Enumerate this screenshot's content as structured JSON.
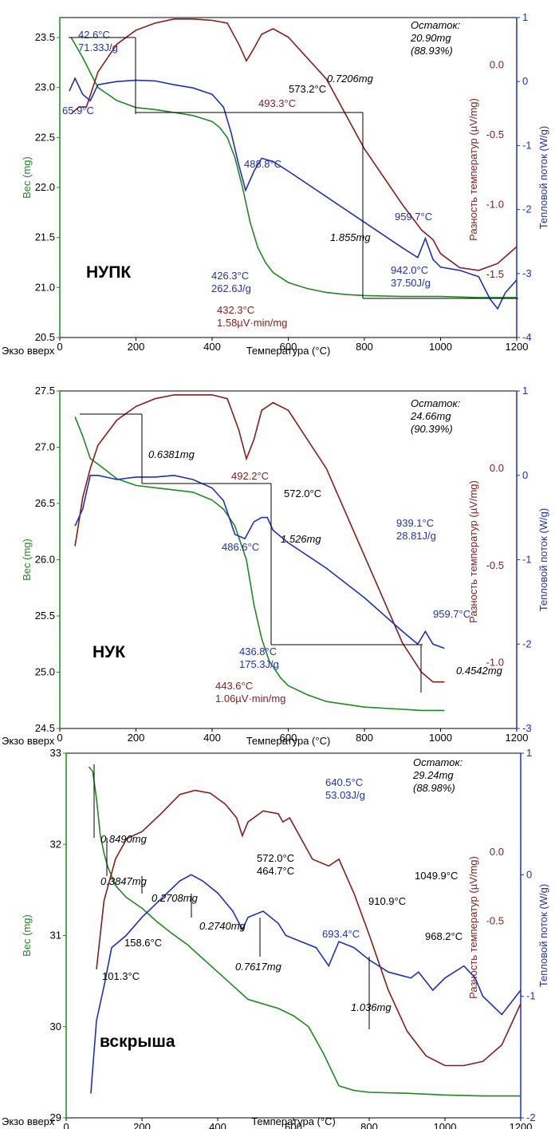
{
  "figure": {
    "x_axis_label": "Температура (°C)",
    "x_note": "Экзо вверх",
    "left_axis_label": "Вес (mg)",
    "mid_axis_label": "Разность температур (µV/mg)",
    "right_axis_label": "Тепловой поток (W/g)"
  },
  "colors": {
    "weight": "#1e8a1e",
    "dta": "#8b1a1a",
    "heat": "#1f2fc0",
    "marker": "#e03030",
    "black": "#000000"
  },
  "chart_data": [
    {
      "type": "line",
      "title": "НУПК",
      "xlim": [
        0,
        1200
      ],
      "x_ticks": [
        0,
        200,
        400,
        600,
        800,
        1000,
        1200
      ],
      "weight_axis": {
        "ylim": [
          20.5,
          23.7
        ],
        "ticks": [
          20.5,
          21.0,
          21.5,
          22.0,
          22.5,
          23.0,
          23.5
        ],
        "tick_labels": [
          "20.5",
          "21.0",
          "21.5",
          "22.0",
          "22.5",
          "23.0",
          "23.5"
        ]
      },
      "dta_axis": {
        "ylim": [
          -1.95,
          0.34
        ],
        "ticks": [
          -1.5,
          -1.0,
          -0.5,
          0.0
        ],
        "tick_labels": [
          "-1.5",
          "-1.0",
          "-0.5",
          "0.0"
        ]
      },
      "heat_axis": {
        "ylim": [
          -4,
          1
        ],
        "ticks": [
          -4,
          -3,
          -2,
          -1,
          0,
          1
        ],
        "tick_labels": [
          "-4",
          "-3",
          "-2",
          "-1",
          "0",
          "1"
        ]
      },
      "series": [
        {
          "name": "weight",
          "axis": "weight",
          "x": [
            30,
            60,
            100,
            150,
            200,
            250,
            300,
            350,
            400,
            420,
            440,
            460,
            480,
            500,
            520,
            540,
            560,
            600,
            650,
            700,
            750,
            800,
            900,
            1000,
            1100,
            1200
          ],
          "y": [
            23.5,
            23.3,
            23.0,
            22.87,
            22.8,
            22.78,
            22.75,
            22.72,
            22.66,
            22.6,
            22.5,
            22.3,
            22.0,
            21.65,
            21.4,
            21.25,
            21.15,
            21.05,
            20.99,
            20.95,
            20.93,
            20.92,
            20.91,
            20.91,
            20.9,
            20.9
          ]
        },
        {
          "name": "dta",
          "axis": "dta",
          "x": [
            30,
            50,
            70,
            100,
            150,
            200,
            250,
            300,
            350,
            400,
            440,
            470,
            490,
            510,
            530,
            560,
            600,
            700,
            800,
            900,
            950,
            980,
            1000,
            1050,
            1100,
            1150,
            1200
          ],
          "y": [
            -0.35,
            -0.3,
            -0.3,
            -0.05,
            0.15,
            0.25,
            0.3,
            0.33,
            0.33,
            0.32,
            0.3,
            0.15,
            0.03,
            0.12,
            0.22,
            0.26,
            0.2,
            -0.1,
            -0.6,
            -1.0,
            -1.18,
            -1.25,
            -1.35,
            -1.45,
            -1.47,
            -1.42,
            -1.3
          ]
        },
        {
          "name": "heat",
          "axis": "heat",
          "x": [
            25,
            40,
            60,
            80,
            100,
            150,
            200,
            250,
            300,
            350,
            400,
            430,
            450,
            470,
            488,
            510,
            530,
            560,
            600,
            700,
            800,
            900,
            940,
            960,
            980,
            1000,
            1050,
            1100,
            1130,
            1150,
            1170,
            1200
          ],
          "y": [
            -0.15,
            0.05,
            -0.2,
            -0.3,
            -0.05,
            0.0,
            0.02,
            0.01,
            -0.05,
            -0.1,
            -0.2,
            -0.4,
            -0.8,
            -1.3,
            -1.7,
            -1.4,
            -1.2,
            -1.25,
            -1.4,
            -1.8,
            -2.2,
            -2.6,
            -2.75,
            -2.45,
            -2.78,
            -2.9,
            -2.95,
            -3.05,
            -3.4,
            -3.55,
            -3.3,
            -3.1
          ]
        }
      ],
      "annotations": [
        {
          "text": "42.6°C",
          "color": "heat"
        },
        {
          "text": "71.33J/g",
          "color": "heat"
        },
        {
          "text": "65.9°C",
          "color": "heat"
        },
        {
          "text": "Остаток:",
          "color": "black",
          "italic": true
        },
        {
          "text": "20.90mg",
          "color": "black",
          "italic": true
        },
        {
          "text": "(88.93%)",
          "color": "black",
          "italic": true
        },
        {
          "text": "573.2°C",
          "color": "black"
        },
        {
          "text": "493.3°C",
          "color": "dta"
        },
        {
          "text": "0.7206mg",
          "color": "black",
          "italic": true
        },
        {
          "text": "488.8°C",
          "color": "heat"
        },
        {
          "text": "1.855mg",
          "color": "black",
          "italic": true
        },
        {
          "text": "959.7°C",
          "color": "heat"
        },
        {
          "text": "942.0°C",
          "color": "heat"
        },
        {
          "text": "37.50J/g",
          "color": "heat"
        },
        {
          "text": "426.3°C",
          "color": "heat"
        },
        {
          "text": "262.6J/g",
          "color": "heat"
        },
        {
          "text": "432.3°C",
          "color": "dta"
        },
        {
          "text": "1.58µV·min/mg",
          "color": "dta"
        }
      ]
    },
    {
      "type": "line",
      "title": "НУК",
      "xlim": [
        0,
        1200
      ],
      "x_ticks": [
        0,
        200,
        400,
        600,
        800,
        1000,
        1200
      ],
      "weight_axis": {
        "ylim": [
          24.5,
          27.5
        ],
        "ticks": [
          24.5,
          25.0,
          25.5,
          26.0,
          26.5,
          27.0,
          27.5
        ],
        "tick_labels": [
          "24.5",
          "25.0",
          "25.5",
          "26.0",
          "26.5",
          "27.0",
          "27.5"
        ]
      },
      "dta_axis": {
        "ylim": [
          -1.34,
          0.4
        ],
        "ticks": [
          -1.0,
          -0.5,
          0.0
        ],
        "tick_labels": [
          "-1.0",
          "-0.5",
          "0.0"
        ]
      },
      "heat_axis": {
        "ylim": [
          -3,
          1
        ],
        "ticks": [
          -3,
          -2,
          -1,
          0,
          1
        ],
        "tick_labels": [
          "-3",
          "-2",
          "-1",
          "0",
          "1"
        ]
      },
      "series": [
        {
          "name": "weight",
          "axis": "weight",
          "x": [
            40,
            60,
            80,
            100,
            150,
            200,
            250,
            300,
            350,
            400,
            430,
            460,
            490,
            510,
            530,
            550,
            580,
            600,
            650,
            700,
            800,
            900,
            950,
            1010
          ],
          "y": [
            27.27,
            27.1,
            26.9,
            26.85,
            26.72,
            26.66,
            26.64,
            26.62,
            26.6,
            26.53,
            26.45,
            26.3,
            26.0,
            25.6,
            25.3,
            25.1,
            24.95,
            24.88,
            24.8,
            24.74,
            24.69,
            24.67,
            24.66,
            24.66
          ]
        },
        {
          "name": "dta",
          "axis": "dta",
          "x": [
            40,
            60,
            80,
            100,
            150,
            200,
            250,
            300,
            350,
            400,
            440,
            470,
            490,
            510,
            530,
            560,
            600,
            700,
            800,
            900,
            950,
            980,
            1010
          ],
          "y": [
            -0.4,
            -0.15,
            0.0,
            0.12,
            0.25,
            0.32,
            0.36,
            0.38,
            0.38,
            0.38,
            0.36,
            0.2,
            0.05,
            0.15,
            0.3,
            0.34,
            0.3,
            0.0,
            -0.45,
            -0.9,
            -1.05,
            -1.1,
            -1.1
          ]
        },
        {
          "name": "heat",
          "axis": "heat",
          "x": [
            40,
            60,
            80,
            100,
            150,
            200,
            250,
            300,
            350,
            400,
            430,
            460,
            486,
            510,
            530,
            545,
            560,
            600,
            650,
            700,
            800,
            900,
            940,
            960,
            980,
            1010
          ],
          "y": [
            -0.6,
            -0.4,
            0.0,
            0.0,
            -0.05,
            -0.02,
            -0.02,
            0.0,
            -0.05,
            -0.15,
            -0.3,
            -0.7,
            -0.75,
            -0.55,
            -0.5,
            -0.5,
            -0.65,
            -0.8,
            -0.95,
            -1.1,
            -1.45,
            -1.85,
            -2.0,
            -1.85,
            -2.0,
            -2.05
          ]
        }
      ],
      "annotations": [
        {
          "text": "0.6381mg",
          "color": "black",
          "italic": true
        },
        {
          "text": "Остаток:",
          "color": "black",
          "italic": true
        },
        {
          "text": "24.66mg",
          "color": "black",
          "italic": true
        },
        {
          "text": "(90.39%)",
          "color": "black",
          "italic": true
        },
        {
          "text": "492.2°C",
          "color": "dta"
        },
        {
          "text": "572.0°C",
          "color": "black"
        },
        {
          "text": "486.6°C",
          "color": "heat"
        },
        {
          "text": "1.526mg",
          "color": "black",
          "italic": true
        },
        {
          "text": "939.1°C",
          "color": "heat"
        },
        {
          "text": "28.81J/g",
          "color": "heat"
        },
        {
          "text": "959.7°C",
          "color": "heat"
        },
        {
          "text": "436.8°C",
          "color": "heat"
        },
        {
          "text": "175.3J/g",
          "color": "heat"
        },
        {
          "text": "0.4542mg",
          "color": "black",
          "italic": true
        },
        {
          "text": "443.6°C",
          "color": "dta"
        },
        {
          "text": "1.06µV·min/mg",
          "color": "dta"
        }
      ]
    },
    {
      "type": "line",
      "title": "вскрыша",
      "xlim": [
        0,
        1200
      ],
      "x_ticks": [
        0,
        200,
        400,
        600,
        800,
        1000,
        1200
      ],
      "weight_axis": {
        "ylim": [
          29,
          33
        ],
        "ticks": [
          29,
          30,
          31,
          32,
          33
        ],
        "tick_labels": [
          "29",
          "30",
          "31",
          "32",
          "33"
        ]
      },
      "dta_axis": {
        "ylim": [
          -1.93,
          0.72
        ],
        "ticks": [
          -0.5,
          0.0
        ],
        "tick_labels": [
          "-0.5",
          "0.0"
        ]
      },
      "heat_axis": {
        "ylim": [
          -2,
          1
        ],
        "ticks": [
          -2,
          -1,
          0,
          1
        ],
        "tick_labels": [
          "-2",
          "-1",
          "0",
          "1"
        ]
      },
      "series": [
        {
          "name": "weight",
          "axis": "weight",
          "x": [
            60,
            70,
            80,
            90,
            100,
            110,
            130,
            158,
            200,
            240,
            280,
            320,
            360,
            400,
            440,
            480,
            520,
            560,
            600,
            640,
            680,
            720,
            760,
            800,
            900,
            1000,
            1100,
            1200
          ],
          "y": [
            32.85,
            32.8,
            32.5,
            32.1,
            31.9,
            31.75,
            31.55,
            31.42,
            31.3,
            31.15,
            31.02,
            30.9,
            30.75,
            30.6,
            30.45,
            30.3,
            30.25,
            30.2,
            30.12,
            30.0,
            29.7,
            29.35,
            29.3,
            29.28,
            29.27,
            29.25,
            29.24,
            29.24
          ]
        },
        {
          "name": "dta",
          "axis": "dta",
          "x": [
            80,
            100,
            130,
            160,
            200,
            250,
            300,
            340,
            380,
            420,
            450,
            465,
            480,
            520,
            560,
            572,
            590,
            620,
            650,
            693,
            720,
            760,
            800,
            850,
            900,
            950,
            1000,
            1050,
            1100,
            1150,
            1200
          ],
          "y": [
            -0.85,
            -0.35,
            -0.05,
            0.1,
            0.15,
            0.28,
            0.42,
            0.45,
            0.43,
            0.35,
            0.25,
            0.12,
            0.22,
            0.3,
            0.28,
            0.22,
            0.25,
            0.1,
            -0.05,
            -0.1,
            -0.05,
            -0.3,
            -0.6,
            -1.0,
            -1.3,
            -1.48,
            -1.55,
            -1.55,
            -1.52,
            -1.4,
            -1.1
          ]
        },
        {
          "name": "heat",
          "axis": "heat",
          "x": [
            65,
            80,
            101,
            120,
            158,
            200,
            250,
            300,
            330,
            360,
            400,
            440,
            465,
            480,
            520,
            560,
            580,
            620,
            660,
            693,
            720,
            760,
            800,
            850,
            910,
            930,
            968,
            1000,
            1050,
            1080,
            1100,
            1150,
            1200
          ],
          "y": [
            -1.8,
            -1.2,
            -0.9,
            -0.6,
            -0.5,
            -0.35,
            -0.2,
            -0.05,
            0.0,
            -0.05,
            -0.15,
            -0.3,
            -0.45,
            -0.35,
            -0.3,
            -0.4,
            -0.5,
            -0.55,
            -0.6,
            -0.75,
            -0.55,
            -0.6,
            -0.7,
            -0.8,
            -0.85,
            -0.8,
            -0.95,
            -0.85,
            -0.75,
            -0.85,
            -1.0,
            -1.15,
            -0.95
          ]
        }
      ],
      "annotations": [
        {
          "text": "Остаток:",
          "color": "black",
          "italic": true
        },
        {
          "text": "29.24mg",
          "color": "black",
          "italic": true
        },
        {
          "text": "(88.98%)",
          "color": "black",
          "italic": true
        },
        {
          "text": "640.5°C",
          "color": "heat"
        },
        {
          "text": "53.03J/g",
          "color": "heat"
        },
        {
          "text": "0.8490mg",
          "color": "black",
          "italic": true
        },
        {
          "text": "0.3847mg",
          "color": "black",
          "italic": true
        },
        {
          "text": "0.2708mg",
          "color": "black",
          "italic": true
        },
        {
          "text": "0.2740mg",
          "color": "black",
          "italic": true
        },
        {
          "text": "0.7617mg",
          "color": "black",
          "italic": true
        },
        {
          "text": "1.036mg",
          "color": "black",
          "italic": true
        },
        {
          "text": "572.0°C",
          "color": "black"
        },
        {
          "text": "464.7°C",
          "color": "black"
        },
        {
          "text": "158.6°C",
          "color": "black"
        },
        {
          "text": "101.3°C",
          "color": "black"
        },
        {
          "text": "693.4°C",
          "color": "heat"
        },
        {
          "text": "910.9°C",
          "color": "black"
        },
        {
          "text": "1049.9°C",
          "color": "black"
        },
        {
          "text": "968.2°C",
          "color": "black"
        }
      ]
    }
  ]
}
